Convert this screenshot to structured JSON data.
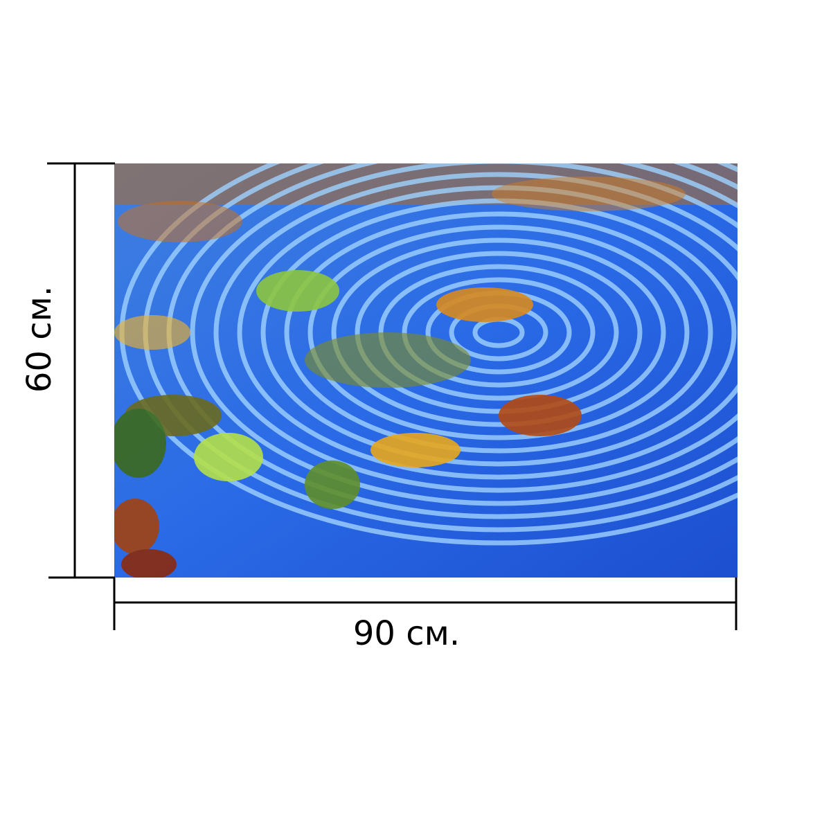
{
  "dimensions": {
    "width_label": "90 см.",
    "height_label": "60 см."
  }
}
